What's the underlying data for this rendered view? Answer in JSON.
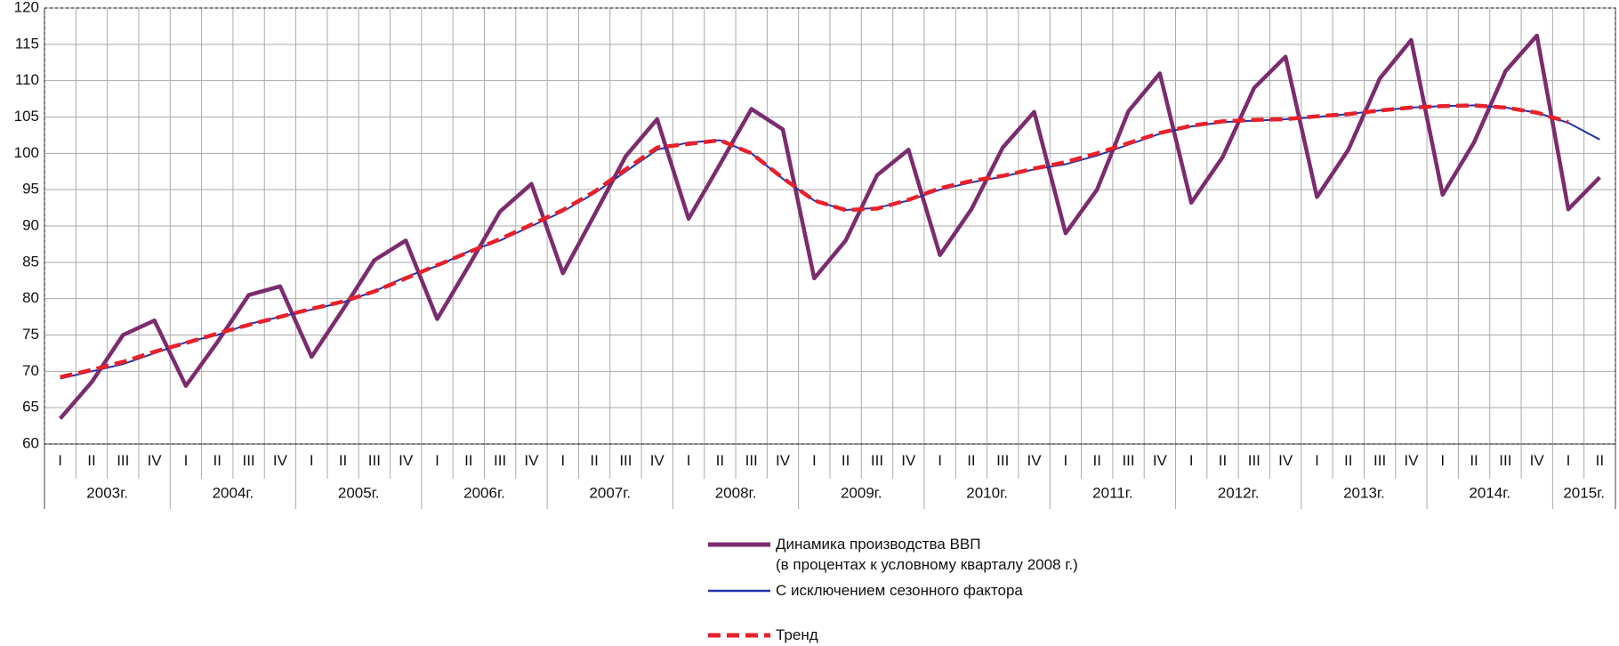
{
  "chart_data": {
    "type": "line",
    "categories": [
      "I",
      "II",
      "III",
      "IV",
      "I",
      "II",
      "III",
      "IV",
      "I",
      "II",
      "III",
      "IV",
      "I",
      "II",
      "III",
      "IV",
      "I",
      "II",
      "III",
      "IV",
      "I",
      "II",
      "III",
      "IV",
      "I",
      "II",
      "III",
      "IV",
      "I",
      "II",
      "III",
      "IV",
      "I",
      "II",
      "III",
      "IV",
      "I",
      "II",
      "III",
      "IV",
      "I",
      "II",
      "III",
      "IV",
      "I",
      "II",
      "III",
      "IV",
      "I",
      "II"
    ],
    "groups": [
      "2003г.",
      "2004г.",
      "2005г.",
      "2006г.",
      "2007г.",
      "2008г.",
      "2009г.",
      "2010г.",
      "2011г.",
      "2012г.",
      "2013г.",
      "2014г.",
      "2015г."
    ],
    "ylim": [
      60,
      120
    ],
    "yticks": [
      60,
      65,
      70,
      75,
      80,
      85,
      90,
      95,
      100,
      105,
      110,
      115,
      120
    ],
    "grid": true,
    "series": [
      {
        "name": "Динамика производства ВВП\n(в процентах к условному кварталу 2008 г.)",
        "color": "#7b2c6e",
        "values": [
          63.5,
          68.5,
          75,
          77,
          68,
          74,
          80.5,
          81.7,
          72,
          78.5,
          85.3,
          88,
          77.2,
          84.5,
          92,
          95.8,
          83.5,
          91.5,
          99.6,
          104.7,
          91,
          98.5,
          106.1,
          103.3,
          82.8,
          88,
          97,
          100.5,
          86,
          92.3,
          100.8,
          105.7,
          89,
          95,
          105.8,
          111,
          93.2,
          99.5,
          109,
          113.3,
          94,
          100.5,
          110.3,
          115.6,
          94.3,
          101.5,
          111.3,
          116.2,
          92.3,
          96.7
        ]
      },
      {
        "name": "С исключением сезонного фактора",
        "color": "#2233aa",
        "values": [
          69,
          70,
          71,
          72.5,
          74,
          75,
          76.5,
          77.5,
          78.5,
          79.5,
          81,
          83,
          84.5,
          86.5,
          88,
          90,
          92,
          94.5,
          97.5,
          100.5,
          101.5,
          101.8,
          100,
          96.5,
          93.5,
          92.2,
          92.5,
          93.5,
          95,
          96,
          96.8,
          97.8,
          98.5,
          99.7,
          101.2,
          102.7,
          103.7,
          104.3,
          104.5,
          104.7,
          105,
          105.4,
          105.9,
          106.3,
          106.5,
          106.6,
          106.3,
          105.6,
          104.2,
          101.9
        ]
      },
      {
        "name": "Тренд",
        "color": "#e8202a",
        "dashed": true,
        "values": [
          69.2,
          70.2,
          71.3,
          72.7,
          73.9,
          75.2,
          76.4,
          77.5,
          78.6,
          79.6,
          81,
          82.8,
          84.6,
          86.4,
          88.2,
          90.2,
          92.2,
          94.7,
          97.8,
          100.8,
          101.3,
          101.8,
          100,
          96.6,
          93.5,
          92.2,
          92.4,
          93.6,
          95.2,
          96.2,
          96.9,
          97.9,
          98.8,
          100,
          101.4,
          102.8,
          103.8,
          104.4,
          104.6,
          104.7,
          105.1,
          105.4,
          105.9,
          106.3,
          106.5,
          106.6,
          106.3,
          105.6,
          104.3,
          null
        ]
      }
    ]
  }
}
